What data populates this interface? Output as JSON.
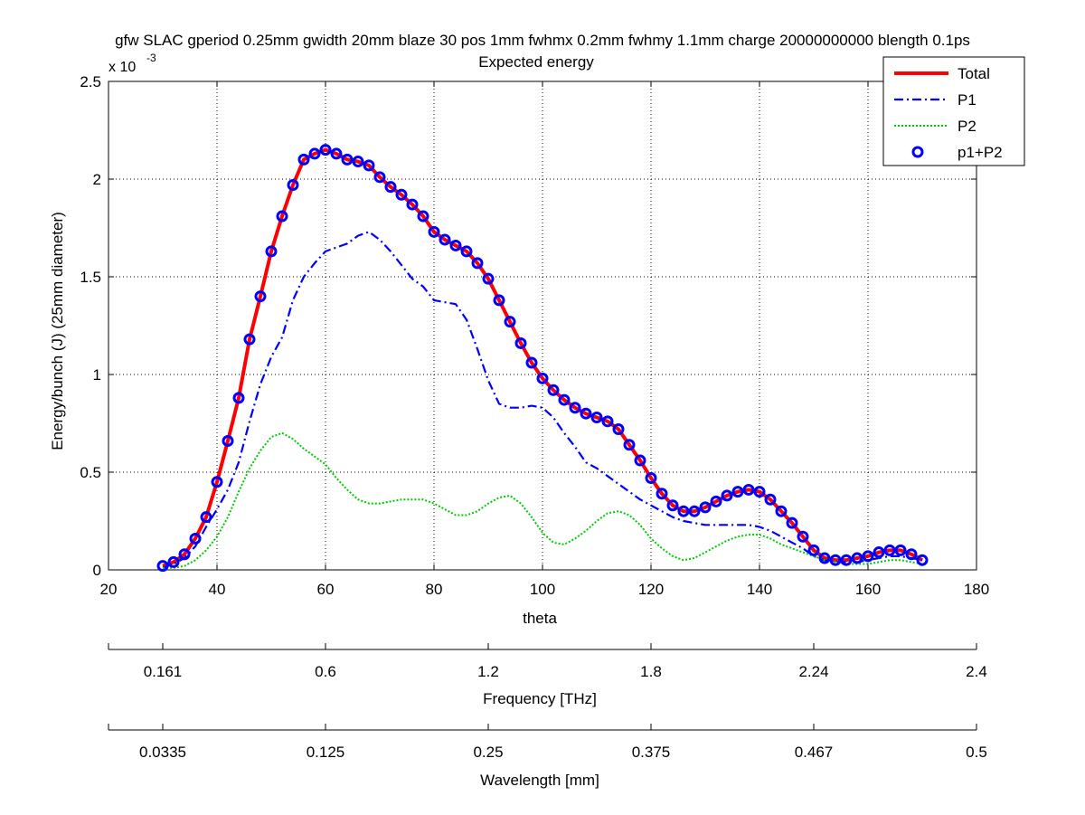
{
  "chart_data": {
    "type": "line",
    "title": "gfw SLAC gperiod 0.25mm gwidth 20mm blaze 30 pos 1mm fwhmx 0.2mm fwhmy 1.1mm charge 20000000000 blength 0.1ps",
    "subtitle": "Expected energy",
    "xlabel": "theta",
    "ylabel": "Energy/bunch (J) (25mm diameter)",
    "y_scale_factor_label": "x 10",
    "y_scale_exponent": "-3",
    "xlim": [
      20,
      180
    ],
    "ylim": [
      0,
      0.0025
    ],
    "grid": true,
    "grid_style": "dotted",
    "legend_position": "top-right",
    "x_ticks": [
      "20",
      "40",
      "60",
      "80",
      "100",
      "120",
      "140",
      "160",
      "180"
    ],
    "y_ticks": [
      "0",
      "0.5",
      "1",
      "1.5",
      "2",
      "2.5"
    ],
    "secondary_axes": [
      {
        "label": "Frequency [THz]",
        "ticks": [
          {
            "theta": 20,
            "label": ""
          },
          {
            "theta": 30,
            "label": "0.161"
          },
          {
            "theta": 60,
            "label": "0.6"
          },
          {
            "theta": 90,
            "label": "1.2"
          },
          {
            "theta": 120,
            "label": "1.8"
          },
          {
            "theta": 150,
            "label": "2.24"
          },
          {
            "theta": 180,
            "label": "2.4"
          }
        ]
      },
      {
        "label": "Wavelength [mm]",
        "ticks": [
          {
            "theta": 20,
            "label": ""
          },
          {
            "theta": 30,
            "label": "0.0335"
          },
          {
            "theta": 60,
            "label": "0.125"
          },
          {
            "theta": 90,
            "label": "0.25"
          },
          {
            "theta": 120,
            "label": "0.375"
          },
          {
            "theta": 150,
            "label": "0.467"
          },
          {
            "theta": 180,
            "label": "0.5"
          }
        ]
      }
    ],
    "series": [
      {
        "name": "Total",
        "style": "solid",
        "color": "#ff0000",
        "points": [
          [
            30,
            2e-05
          ],
          [
            32,
            4e-05
          ],
          [
            34,
            8e-05
          ],
          [
            36,
            0.00016
          ],
          [
            38,
            0.00027
          ],
          [
            40,
            0.00045
          ],
          [
            42,
            0.00066
          ],
          [
            44,
            0.00088
          ],
          [
            46,
            0.00118
          ],
          [
            48,
            0.0014
          ],
          [
            50,
            0.00163
          ],
          [
            52,
            0.00181
          ],
          [
            54,
            0.00197
          ],
          [
            56,
            0.0021
          ],
          [
            58,
            0.00213
          ],
          [
            60,
            0.00215
          ],
          [
            62,
            0.00213
          ],
          [
            64,
            0.0021
          ],
          [
            66,
            0.00209
          ],
          [
            68,
            0.00207
          ],
          [
            70,
            0.00201
          ],
          [
            72,
            0.00196
          ],
          [
            74,
            0.00192
          ],
          [
            76,
            0.00187
          ],
          [
            78,
            0.00181
          ],
          [
            80,
            0.00173
          ],
          [
            82,
            0.00169
          ],
          [
            84,
            0.00166
          ],
          [
            86,
            0.00163
          ],
          [
            88,
            0.00157
          ],
          [
            90,
            0.00149
          ],
          [
            92,
            0.00138
          ],
          [
            94,
            0.00127
          ],
          [
            96,
            0.00116
          ],
          [
            98,
            0.00106
          ],
          [
            100,
            0.00098
          ],
          [
            102,
            0.00092
          ],
          [
            104,
            0.00087
          ],
          [
            106,
            0.00083
          ],
          [
            108,
            0.0008
          ],
          [
            110,
            0.00078
          ],
          [
            112,
            0.00076
          ],
          [
            114,
            0.00072
          ],
          [
            116,
            0.00064
          ],
          [
            118,
            0.00056
          ],
          [
            120,
            0.00047
          ],
          [
            122,
            0.00039
          ],
          [
            124,
            0.00033
          ],
          [
            126,
            0.0003
          ],
          [
            128,
            0.0003
          ],
          [
            130,
            0.00032
          ],
          [
            132,
            0.00035
          ],
          [
            134,
            0.00038
          ],
          [
            136,
            0.0004
          ],
          [
            138,
            0.00041
          ],
          [
            140,
            0.0004
          ],
          [
            142,
            0.00036
          ],
          [
            144,
            0.0003
          ],
          [
            146,
            0.00024
          ],
          [
            148,
            0.00017
          ],
          [
            150,
            0.0001
          ],
          [
            152,
            6e-05
          ],
          [
            154,
            5e-05
          ],
          [
            156,
            5e-05
          ],
          [
            158,
            6e-05
          ],
          [
            160,
            7e-05
          ],
          [
            162,
            9e-05
          ],
          [
            164,
            0.0001
          ],
          [
            166,
            0.0001
          ],
          [
            168,
            8e-05
          ],
          [
            170,
            5e-05
          ]
        ]
      },
      {
        "name": "P1",
        "style": "dash-dot",
        "color": "#0000ff",
        "points": [
          [
            30,
            1e-05
          ],
          [
            32,
            3e-05
          ],
          [
            34,
            6e-05
          ],
          [
            36,
            0.00012
          ],
          [
            38,
            0.00022
          ],
          [
            40,
            0.00031
          ],
          [
            42,
            0.00041
          ],
          [
            44,
            0.00055
          ],
          [
            46,
            0.00076
          ],
          [
            48,
            0.00095
          ],
          [
            50,
            0.00109
          ],
          [
            52,
            0.00119
          ],
          [
            54,
            0.00138
          ],
          [
            56,
            0.0015
          ],
          [
            58,
            0.00157
          ],
          [
            60,
            0.00163
          ],
          [
            62,
            0.00165
          ],
          [
            64,
            0.00167
          ],
          [
            66,
            0.00171
          ],
          [
            68,
            0.00173
          ],
          [
            70,
            0.00169
          ],
          [
            72,
            0.00163
          ],
          [
            74,
            0.00156
          ],
          [
            76,
            0.00149
          ],
          [
            78,
            0.00145
          ],
          [
            80,
            0.00138
          ],
          [
            82,
            0.00137
          ],
          [
            84,
            0.00136
          ],
          [
            86,
            0.00128
          ],
          [
            88,
            0.00113
          ],
          [
            90,
            0.00097
          ],
          [
            92,
            0.00085
          ],
          [
            94,
            0.00083
          ],
          [
            96,
            0.00083
          ],
          [
            98,
            0.00084
          ],
          [
            100,
            0.00083
          ],
          [
            102,
            0.00078
          ],
          [
            104,
            0.0007
          ],
          [
            106,
            0.00063
          ],
          [
            108,
            0.00055
          ],
          [
            110,
            0.00052
          ],
          [
            112,
            0.00048
          ],
          [
            114,
            0.00044
          ],
          [
            116,
            0.0004
          ],
          [
            118,
            0.00036
          ],
          [
            120,
            0.00033
          ],
          [
            122,
            0.0003
          ],
          [
            124,
            0.00027
          ],
          [
            126,
            0.00025
          ],
          [
            128,
            0.00024
          ],
          [
            130,
            0.00023
          ],
          [
            132,
            0.00023
          ],
          [
            134,
            0.00023
          ],
          [
            136,
            0.00023
          ],
          [
            138,
            0.00023
          ],
          [
            140,
            0.00022
          ],
          [
            142,
            0.0002
          ],
          [
            144,
            0.00017
          ],
          [
            146,
            0.00014
          ],
          [
            148,
            0.00011
          ],
          [
            150,
            7e-05
          ],
          [
            152,
            5e-05
          ],
          [
            154,
            4e-05
          ],
          [
            156,
            4e-05
          ],
          [
            158,
            4e-05
          ],
          [
            160,
            5e-05
          ],
          [
            162,
            6e-05
          ],
          [
            164,
            7e-05
          ],
          [
            166,
            7e-05
          ],
          [
            168,
            6e-05
          ],
          [
            170,
            5e-05
          ]
        ]
      },
      {
        "name": "P2",
        "style": "dotted",
        "color": "#00cc00",
        "points": [
          [
            30,
            1e-05
          ],
          [
            32,
            1e-05
          ],
          [
            34,
            2e-05
          ],
          [
            36,
            5e-05
          ],
          [
            38,
            0.0001
          ],
          [
            40,
            0.00017
          ],
          [
            42,
            0.00027
          ],
          [
            44,
            0.0004
          ],
          [
            46,
            0.00052
          ],
          [
            48,
            0.00061
          ],
          [
            50,
            0.00068
          ],
          [
            52,
            0.0007
          ],
          [
            54,
            0.00067
          ],
          [
            56,
            0.00062
          ],
          [
            58,
            0.00058
          ],
          [
            60,
            0.00054
          ],
          [
            62,
            0.00047
          ],
          [
            64,
            0.00041
          ],
          [
            66,
            0.00036
          ],
          [
            68,
            0.00034
          ],
          [
            70,
            0.00034
          ],
          [
            72,
            0.00035
          ],
          [
            74,
            0.00036
          ],
          [
            76,
            0.00036
          ],
          [
            78,
            0.00036
          ],
          [
            80,
            0.00034
          ],
          [
            82,
            0.00031
          ],
          [
            84,
            0.00028
          ],
          [
            86,
            0.00028
          ],
          [
            88,
            0.0003
          ],
          [
            90,
            0.00034
          ],
          [
            92,
            0.00037
          ],
          [
            94,
            0.00038
          ],
          [
            96,
            0.00034
          ],
          [
            98,
            0.00027
          ],
          [
            100,
            0.00019
          ],
          [
            102,
            0.00014
          ],
          [
            104,
            0.00013
          ],
          [
            106,
            0.00016
          ],
          [
            108,
            0.0002
          ],
          [
            110,
            0.00025
          ],
          [
            112,
            0.00029
          ],
          [
            114,
            0.0003
          ],
          [
            116,
            0.00028
          ],
          [
            118,
            0.00023
          ],
          [
            120,
            0.00016
          ],
          [
            122,
            0.00011
          ],
          [
            124,
            7e-05
          ],
          [
            126,
            5e-05
          ],
          [
            128,
            6e-05
          ],
          [
            130,
            9e-05
          ],
          [
            132,
            0.00012
          ],
          [
            134,
            0.00015
          ],
          [
            136,
            0.00017
          ],
          [
            138,
            0.00018
          ],
          [
            140,
            0.00018
          ],
          [
            142,
            0.00016
          ],
          [
            144,
            0.00013
          ],
          [
            146,
            0.00011
          ],
          [
            148,
            9e-05
          ],
          [
            150,
            7e-05
          ],
          [
            152,
            5e-05
          ],
          [
            154,
            4e-05
          ],
          [
            156,
            3e-05
          ],
          [
            158,
            3e-05
          ],
          [
            160,
            3e-05
          ],
          [
            162,
            4e-05
          ],
          [
            164,
            5e-05
          ],
          [
            166,
            5e-05
          ],
          [
            168,
            4e-05
          ],
          [
            170,
            3e-05
          ]
        ]
      },
      {
        "name": "p1+P2",
        "style": "markers",
        "marker": "circle",
        "color": "#0000ff",
        "points": [
          [
            30,
            2e-05
          ],
          [
            32,
            4e-05
          ],
          [
            34,
            8e-05
          ],
          [
            36,
            0.00016
          ],
          [
            38,
            0.00027
          ],
          [
            40,
            0.00045
          ],
          [
            42,
            0.00066
          ],
          [
            44,
            0.00088
          ],
          [
            46,
            0.00118
          ],
          [
            48,
            0.0014
          ],
          [
            50,
            0.00163
          ],
          [
            52,
            0.00181
          ],
          [
            54,
            0.00197
          ],
          [
            56,
            0.0021
          ],
          [
            58,
            0.00213
          ],
          [
            60,
            0.00215
          ],
          [
            62,
            0.00213
          ],
          [
            64,
            0.0021
          ],
          [
            66,
            0.00209
          ],
          [
            68,
            0.00207
          ],
          [
            70,
            0.00201
          ],
          [
            72,
            0.00196
          ],
          [
            74,
            0.00192
          ],
          [
            76,
            0.00187
          ],
          [
            78,
            0.00181
          ],
          [
            80,
            0.00173
          ],
          [
            82,
            0.00169
          ],
          [
            84,
            0.00166
          ],
          [
            86,
            0.00163
          ],
          [
            88,
            0.00157
          ],
          [
            90,
            0.00149
          ],
          [
            92,
            0.00138
          ],
          [
            94,
            0.00127
          ],
          [
            96,
            0.00116
          ],
          [
            98,
            0.00106
          ],
          [
            100,
            0.00098
          ],
          [
            102,
            0.00092
          ],
          [
            104,
            0.00087
          ],
          [
            106,
            0.00083
          ],
          [
            108,
            0.0008
          ],
          [
            110,
            0.00078
          ],
          [
            112,
            0.00076
          ],
          [
            114,
            0.00072
          ],
          [
            116,
            0.00064
          ],
          [
            118,
            0.00056
          ],
          [
            120,
            0.00047
          ],
          [
            122,
            0.00039
          ],
          [
            124,
            0.00033
          ],
          [
            126,
            0.0003
          ],
          [
            128,
            0.0003
          ],
          [
            130,
            0.00032
          ],
          [
            132,
            0.00035
          ],
          [
            134,
            0.00038
          ],
          [
            136,
            0.0004
          ],
          [
            138,
            0.00041
          ],
          [
            140,
            0.0004
          ],
          [
            142,
            0.00036
          ],
          [
            144,
            0.0003
          ],
          [
            146,
            0.00024
          ],
          [
            148,
            0.00017
          ],
          [
            150,
            0.0001
          ],
          [
            152,
            6e-05
          ],
          [
            154,
            5e-05
          ],
          [
            156,
            5e-05
          ],
          [
            158,
            6e-05
          ],
          [
            160,
            7e-05
          ],
          [
            162,
            9e-05
          ],
          [
            164,
            0.0001
          ],
          [
            166,
            0.0001
          ],
          [
            168,
            8e-05
          ],
          [
            170,
            5e-05
          ]
        ]
      }
    ]
  }
}
